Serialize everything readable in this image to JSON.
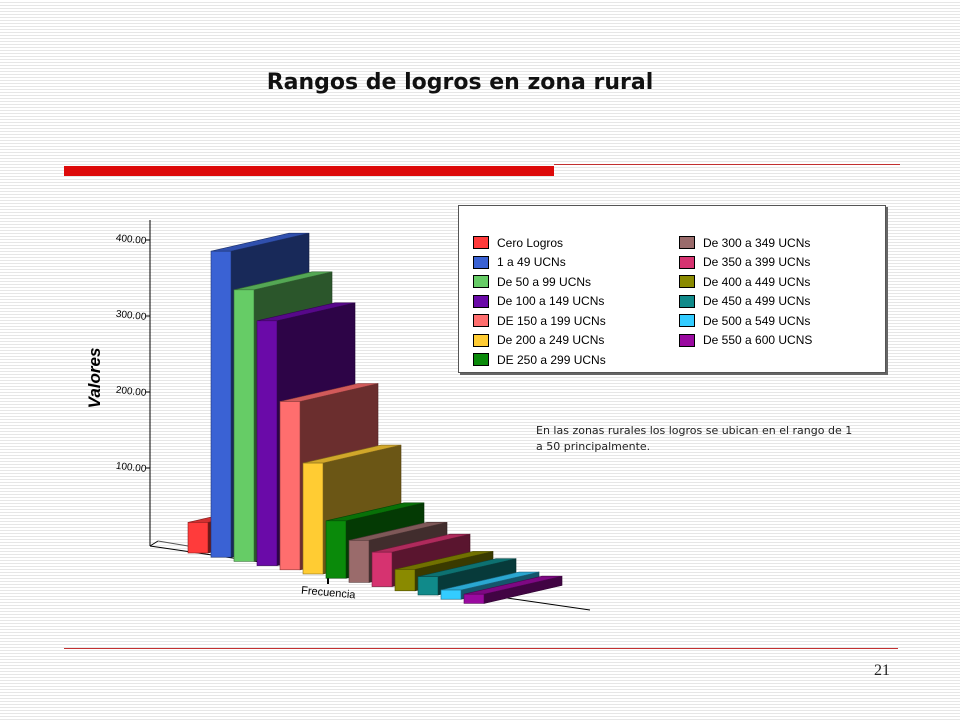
{
  "slide": {
    "title": "Rangos de logros en zona rural",
    "note": "En las zonas rurales los logros se ubican en el rango de 1 a 50 principalmente.",
    "page_number": "21"
  },
  "colors": {
    "accent_red": "#dd0a0a"
  },
  "chart_data": {
    "type": "bar",
    "title": "",
    "xlabel": "Frecuencia",
    "ylabel": "Valores",
    "ylim": [
      0,
      400
    ],
    "yticks": [
      "100.00",
      "200.00",
      "300.00",
      "400.00"
    ],
    "legend_position": "top-right",
    "series": [
      {
        "name": "Cero Logros",
        "value": 40,
        "color": "#ff3b3b"
      },
      {
        "name": "1 a 49 UCNs",
        "value": 400,
        "color": "#3a62d4"
      },
      {
        "name": "De 50 a 99 UCNs",
        "value": 355,
        "color": "#66cc66"
      },
      {
        "name": "De 100 a 149 UCNs",
        "value": 320,
        "color": "#6a0aa8"
      },
      {
        "name": "DE 150 a 199 UCNs",
        "value": 220,
        "color": "#ff6e6e"
      },
      {
        "name": "De 200 a 249 UCNs",
        "value": 145,
        "color": "#ffcc33"
      },
      {
        "name": "DE 250 a 299 UCNs",
        "value": 75,
        "color": "#0a8a0a"
      },
      {
        "name": "De 300 a 349 UCNs",
        "value": 55,
        "color": "#9a6b6b"
      },
      {
        "name": "De 350 a 399 UCNs",
        "value": 45,
        "color": "#d63370"
      },
      {
        "name": "De 400 a 449 UCNs",
        "value": 28,
        "color": "#8a8a00"
      },
      {
        "name": "De 450 a 499 UCNs",
        "value": 24,
        "color": "#108a8a"
      },
      {
        "name": "De 500 a 549 UCNs",
        "value": 12,
        "color": "#33ccff"
      },
      {
        "name": "De 550 a 600 UCNS",
        "value": 12,
        "color": "#9a0aa0"
      }
    ]
  }
}
